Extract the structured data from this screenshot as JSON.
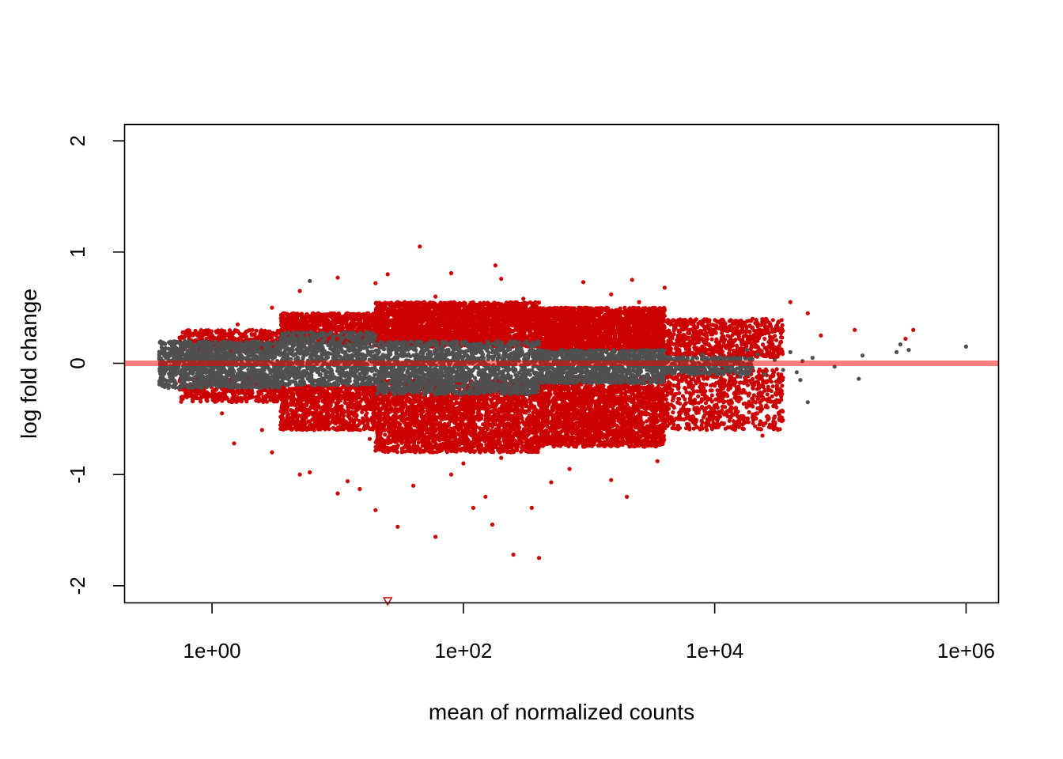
{
  "chart_data": {
    "type": "scatter",
    "title": "",
    "xlabel": "mean of normalized counts",
    "ylabel": "log fold change",
    "x_scale": "log10",
    "xlim": [
      0.2,
      1800000
    ],
    "ylim": [
      -2.15,
      2.15
    ],
    "x_ticks": [
      {
        "value": 1,
        "label": "1e+00"
      },
      {
        "value": 100,
        "label": "1e+02"
      },
      {
        "value": 10000,
        "label": "1e+04"
      },
      {
        "value": 1000000,
        "label": "1e+06"
      }
    ],
    "y_ticks": [
      {
        "value": -2,
        "label": "-2"
      },
      {
        "value": -1,
        "label": "-1"
      },
      {
        "value": 0,
        "label": "0"
      },
      {
        "value": 1,
        "label": "1"
      },
      {
        "value": 2,
        "label": "2"
      }
    ],
    "reference_line": {
      "y": 0,
      "color": "#ff0000",
      "opacity": 0.5
    },
    "grid": false,
    "legend": "none",
    "colors": {
      "significant": "#cc0000",
      "not_significant": "#505050"
    },
    "series": [
      {
        "status": "significant",
        "color": "#cc0000",
        "marker": "circle",
        "points": [
          [
            45,
            1.05
          ],
          [
            180,
            0.88
          ],
          [
            25,
            0.8
          ],
          [
            80,
            0.81
          ],
          [
            20,
            0.72
          ],
          [
            900,
            0.73
          ],
          [
            2200,
            0.75
          ],
          [
            200,
            0.76
          ],
          [
            10,
            0.77
          ],
          [
            5,
            0.65
          ],
          [
            3,
            0.5
          ],
          [
            1.6,
            0.35
          ],
          [
            40000,
            0.55
          ],
          [
            55000,
            0.45
          ],
          [
            70000,
            0.25
          ],
          [
            130000,
            0.3
          ],
          [
            380000,
            0.3
          ],
          [
            330000,
            0.22
          ],
          [
            60,
            0.6
          ],
          [
            300,
            0.58
          ],
          [
            1500,
            0.62
          ],
          [
            4000,
            0.68
          ],
          [
            30,
            0.55
          ],
          [
            12,
            0.45
          ],
          [
            8,
            0.42
          ],
          [
            600,
            0.5
          ],
          [
            2500,
            0.55
          ],
          [
            20000,
            0.4
          ],
          [
            25000,
            0.35
          ],
          [
            15000,
            0.3
          ],
          [
            1.5,
            -0.72
          ],
          [
            3,
            -0.8
          ],
          [
            5,
            -1.0
          ],
          [
            6,
            -0.98
          ],
          [
            10,
            -1.17
          ],
          [
            12,
            -1.06
          ],
          [
            15,
            -1.13
          ],
          [
            20,
            -1.32
          ],
          [
            30,
            -1.47
          ],
          [
            40,
            -1.1
          ],
          [
            60,
            -1.56
          ],
          [
            80,
            -1.0
          ],
          [
            120,
            -1.3
          ],
          [
            150,
            -1.2
          ],
          [
            170,
            -1.45
          ],
          [
            250,
            -1.72
          ],
          [
            350,
            -1.3
          ],
          [
            400,
            -1.75
          ],
          [
            500,
            -1.07
          ],
          [
            1500,
            -1.05
          ],
          [
            2000,
            -1.2
          ],
          [
            3500,
            -0.88
          ],
          [
            24000,
            -0.65
          ],
          [
            26000,
            -0.48
          ],
          [
            7000,
            -0.55
          ],
          [
            100,
            -0.9
          ],
          [
            200,
            -0.85
          ],
          [
            700,
            -0.95
          ],
          [
            900,
            -0.75
          ],
          [
            2.5,
            -0.6
          ],
          [
            1.2,
            -0.45
          ],
          [
            50,
            -0.75
          ],
          [
            18,
            -0.68
          ],
          [
            8,
            -0.55
          ]
        ],
        "bands": [
          {
            "x_min": 0.55,
            "x_max": 3.5,
            "lfc_min": 0.1,
            "lfc_max": 0.3,
            "count": 400
          },
          {
            "x_min": 3.5,
            "x_max": 20,
            "lfc_min": 0.18,
            "lfc_max": 0.45,
            "count": 900
          },
          {
            "x_min": 20,
            "x_max": 400,
            "lfc_min": 0.15,
            "lfc_max": 0.55,
            "count": 2600
          },
          {
            "x_min": 400,
            "x_max": 4000,
            "lfc_min": 0.12,
            "lfc_max": 0.5,
            "count": 2200
          },
          {
            "x_min": 4000,
            "x_max": 35000,
            "lfc_min": 0.05,
            "lfc_max": 0.4,
            "count": 700
          },
          {
            "x_min": 0.55,
            "x_max": 3.5,
            "lfc_min": -0.35,
            "lfc_max": -0.12,
            "count": 400
          },
          {
            "x_min": 3.5,
            "x_max": 20,
            "lfc_min": -0.6,
            "lfc_max": -0.2,
            "count": 900
          },
          {
            "x_min": 20,
            "x_max": 400,
            "lfc_min": -0.8,
            "lfc_max": -0.15,
            "count": 2600
          },
          {
            "x_min": 400,
            "x_max": 4000,
            "lfc_min": -0.75,
            "lfc_max": -0.12,
            "count": 2200
          },
          {
            "x_min": 4000,
            "x_max": 35000,
            "lfc_min": -0.6,
            "lfc_max": -0.05,
            "count": 700
          }
        ]
      },
      {
        "status": "not_significant",
        "color": "#505050",
        "marker": "circle",
        "points": [
          [
            6,
            0.74
          ],
          [
            1000000,
            0.15
          ],
          [
            300000,
            0.17
          ],
          [
            350000,
            0.12
          ],
          [
            280000,
            0.1
          ],
          [
            150000,
            0.07
          ],
          [
            140000,
            -0.14
          ],
          [
            90000,
            -0.03
          ],
          [
            60000,
            0.05
          ],
          [
            50000,
            0.02
          ],
          [
            45000,
            -0.08
          ],
          [
            48000,
            -0.15
          ],
          [
            55000,
            -0.35
          ],
          [
            40000,
            0.1
          ],
          [
            35000,
            -0.06
          ],
          [
            30000,
            0.03
          ],
          [
            25000,
            -0.1
          ],
          [
            22000,
            0.08
          ],
          [
            20000,
            -0.04
          ],
          [
            18000,
            0.12
          ],
          [
            16000,
            -0.12
          ],
          [
            14000,
            0.05
          ],
          [
            12000,
            -0.07
          ],
          [
            10000,
            0.04
          ],
          [
            9000,
            -0.1
          ],
          [
            8000,
            0.08
          ],
          [
            7000,
            -0.05
          ],
          [
            0.45,
            -0.22
          ],
          [
            0.4,
            -0.1
          ],
          [
            0.38,
            0.05
          ]
        ],
        "bands": [
          {
            "x_min": 0.38,
            "x_max": 3.5,
            "lfc_min": -0.22,
            "lfc_max": 0.2,
            "count": 1300
          },
          {
            "x_min": 3.5,
            "x_max": 20,
            "lfc_min": -0.2,
            "lfc_max": 0.28,
            "count": 900
          },
          {
            "x_min": 20,
            "x_max": 400,
            "lfc_min": -0.28,
            "lfc_max": 0.2,
            "count": 1600
          },
          {
            "x_min": 400,
            "x_max": 4000,
            "lfc_min": -0.18,
            "lfc_max": 0.12,
            "count": 1100
          },
          {
            "x_min": 4000,
            "x_max": 20000,
            "lfc_min": -0.1,
            "lfc_max": 0.06,
            "count": 300
          }
        ]
      },
      {
        "status": "significant_out_of_range",
        "color": "#cc0000",
        "marker": "triangle-down-open",
        "points": [
          [
            25,
            -2.15
          ]
        ]
      }
    ]
  }
}
